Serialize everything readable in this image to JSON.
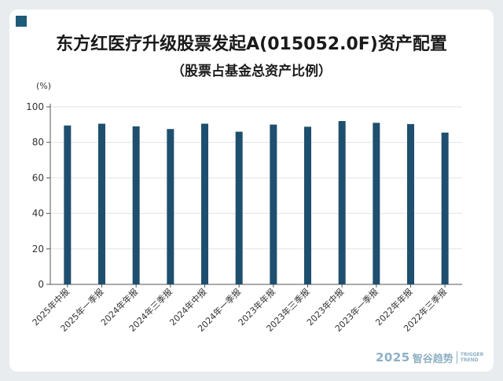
{
  "chart_data": {
    "type": "bar",
    "title": "东方红医疗升级股票发起A(015052.0F)资产配置",
    "subtitle": "（股票占基金总资产比例）",
    "ylabel": "(%)",
    "xlabel": "",
    "ylim": [
      0,
      100
    ],
    "yticks": [
      0,
      20,
      40,
      60,
      80,
      100
    ],
    "grid": true,
    "categories": [
      "2025年中报",
      "2025年一季报",
      "2024年年报",
      "2024年三季报",
      "2024年中报",
      "2024年一季报",
      "2023年年报",
      "2023年三季报",
      "2023年中报",
      "2023年一季报",
      "2022年年报",
      "2022年三季报"
    ],
    "values": [
      89.5,
      90.5,
      89.0,
      87.5,
      90.5,
      86.0,
      90.0,
      88.8,
      92.0,
      91.0,
      90.3,
      85.5
    ],
    "bar_color": "#1e4f6e"
  },
  "watermark": {
    "year": "2025",
    "name": "智谷趋势",
    "en_line1": "TRIGGER",
    "en_line2": "TREND"
  }
}
